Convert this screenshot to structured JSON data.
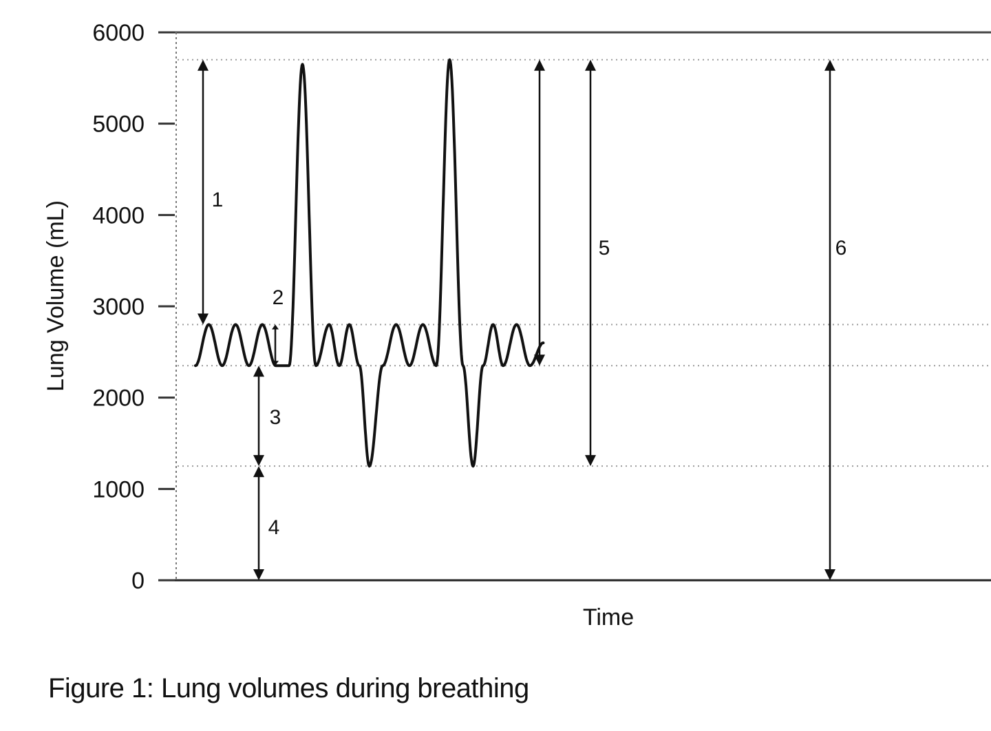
{
  "caption": "Figure 1: Lung volumes during breathing",
  "chart_data": {
    "type": "line",
    "title": "",
    "xlabel": "Time",
    "ylabel": "Lung Volume (mL)",
    "ylim": [
      0,
      6000
    ],
    "yticks": [
      0,
      1000,
      2000,
      3000,
      4000,
      5000,
      6000
    ],
    "ytick_labels": [
      "0",
      "1000",
      "2000",
      "3000",
      "4000",
      "5000",
      "6000"
    ],
    "grid": "dotted reference lines",
    "reference_lines": [
      5700,
      2800,
      2350,
      1250
    ],
    "series": [
      {
        "x": [
          0,
          2,
          4,
          6,
          8,
          10,
          12,
          14,
          16,
          18,
          20,
          21.5,
          23,
          24.5,
          26,
          28,
          30,
          32,
          34,
          36,
          38,
          40,
          41.5,
          43,
          44.5,
          46,
          48,
          50,
          52,
          54,
          56,
          57.5,
          59,
          60.5,
          62,
          64,
          66,
          68,
          70,
          72,
          74,
          76
        ],
        "y": [
          2350,
          2800,
          2350,
          2800,
          2350,
          2800,
          2350,
          2350,
          5650,
          2350,
          2800,
          2350,
          2800,
          2350,
          1250,
          2350,
          2800,
          2350,
          2800,
          2350,
          5700,
          2350,
          1250,
          2350,
          2800,
          2350,
          2800,
          2350,
          2600,
          null,
          null,
          null,
          null,
          null,
          null,
          null,
          null,
          null,
          null,
          null,
          null,
          null
        ]
      }
    ],
    "annotations": [
      {
        "label": "1",
        "from": 5700,
        "to": 2800
      },
      {
        "label": "2",
        "from": 2800,
        "to": 2350
      },
      {
        "label": "3",
        "from": 2350,
        "to": 1250
      },
      {
        "label": "4",
        "from": 1250,
        "to": 0
      },
      {
        "label": "5",
        "from": 5700,
        "to": 1250
      },
      {
        "label": "6",
        "from": 5700,
        "to": 0
      }
    ]
  }
}
